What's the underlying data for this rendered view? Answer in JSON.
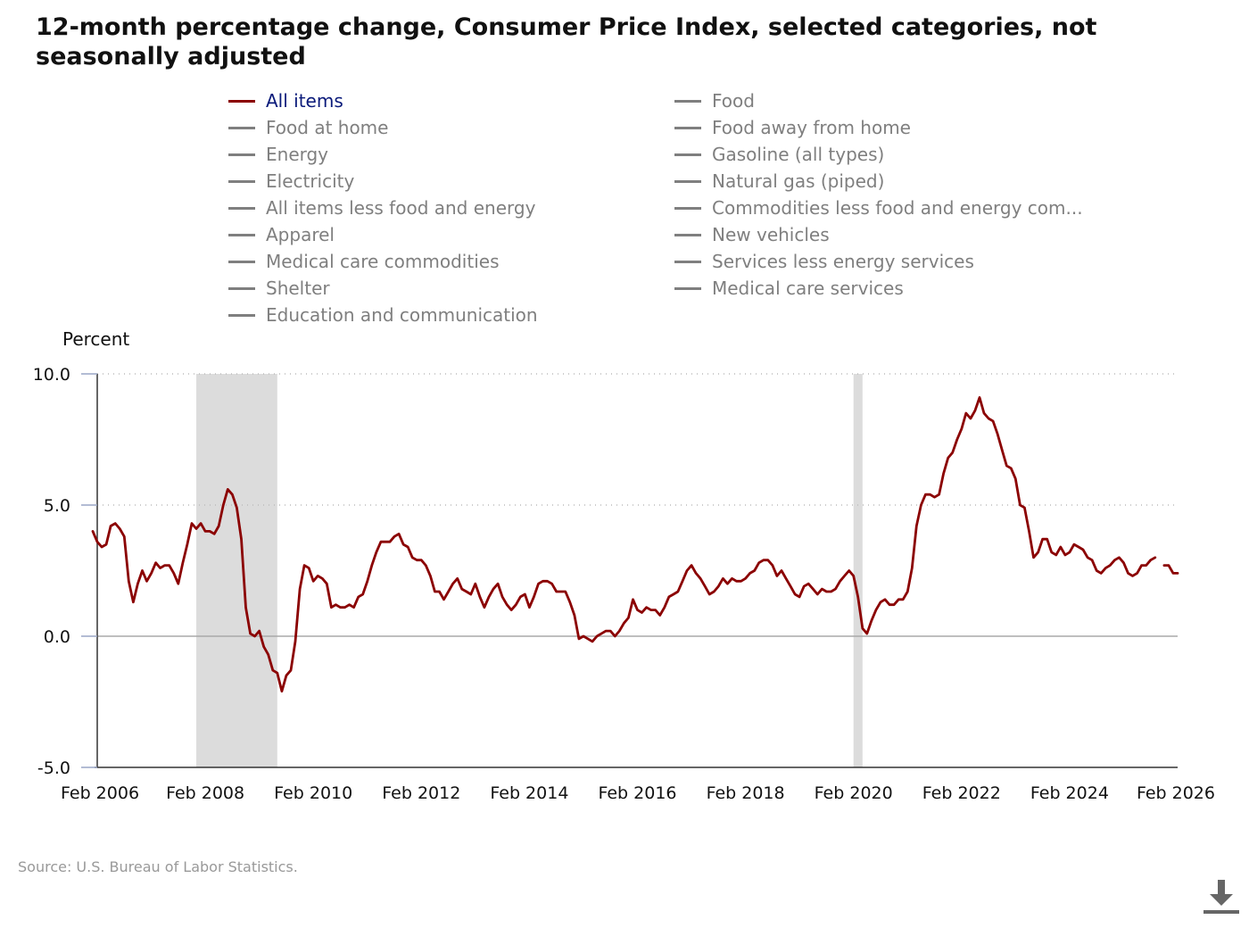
{
  "title": "12-month percentage change, Consumer Price Index, selected categories, not seasonally adjusted",
  "legend": {
    "items": [
      {
        "label": "All items",
        "active": true
      },
      {
        "label": "Food",
        "active": false
      },
      {
        "label": "Food at home",
        "active": false
      },
      {
        "label": "Food away from home",
        "active": false
      },
      {
        "label": "Energy",
        "active": false
      },
      {
        "label": "Gasoline (all types)",
        "active": false
      },
      {
        "label": "Electricity",
        "active": false
      },
      {
        "label": "Natural gas (piped)",
        "active": false
      },
      {
        "label": "All items less food and energy",
        "active": false
      },
      {
        "label": "Commodities less food and energy com...",
        "active": false
      },
      {
        "label": "Apparel",
        "active": false
      },
      {
        "label": "New vehicles",
        "active": false
      },
      {
        "label": "Medical care commodities",
        "active": false
      },
      {
        "label": "Services less energy services",
        "active": false
      },
      {
        "label": "Shelter",
        "active": false
      },
      {
        "label": "Medical care services",
        "active": false
      },
      {
        "label": "Education and communication",
        "active": false
      }
    ]
  },
  "source": "Source: U.S. Bureau of Labor Statistics.",
  "icons": {
    "download": "download-icon"
  },
  "colors": {
    "series": "#8b0000",
    "inactive": "#7f7f7f",
    "active_label": "#0a1a7a",
    "recession": "#dcdcdc",
    "grid": "#bbbbbb"
  },
  "chart_data": {
    "type": "line",
    "title": "12-month percentage change, Consumer Price Index, selected categories, not seasonally adjusted",
    "ylabel": "Percent",
    "xlabel": "",
    "ylim": [
      -5,
      10
    ],
    "y_ticks": [
      "10.0",
      "5.0",
      "0.0",
      "-5.0"
    ],
    "y_tick_values": [
      10,
      5,
      0,
      -5
    ],
    "x_ticks": [
      "Feb 2006",
      "Feb 2008",
      "Feb 2010",
      "Feb 2012",
      "Feb 2014",
      "Feb 2016",
      "Feb 2018",
      "Feb 2020",
      "Feb 2022",
      "Feb 2024",
      "Feb 2026"
    ],
    "x_range": [
      "2006-02",
      "2026-02"
    ],
    "grid": "horizontal dotted",
    "legend_placement": "top",
    "recessions": [
      {
        "start": "2007-12",
        "end": "2009-06"
      },
      {
        "start": "2020-02",
        "end": "2020-04"
      }
    ],
    "series": [
      {
        "name": "All items",
        "start": "2006-01",
        "values": [
          4.0,
          3.6,
          3.4,
          3.5,
          4.2,
          4.3,
          4.1,
          3.8,
          2.1,
          1.3,
          2.0,
          2.5,
          2.1,
          2.4,
          2.8,
          2.6,
          2.7,
          2.7,
          2.4,
          2.0,
          2.8,
          3.5,
          4.3,
          4.1,
          4.3,
          4.0,
          4.0,
          3.9,
          4.2,
          5.0,
          5.6,
          5.4,
          4.9,
          3.7,
          1.1,
          0.1,
          0.0,
          0.2,
          -0.4,
          -0.7,
          -1.3,
          -1.4,
          -2.1,
          -1.5,
          -1.3,
          -0.2,
          1.8,
          2.7,
          2.6,
          2.1,
          2.3,
          2.2,
          2.0,
          1.1,
          1.2,
          1.1,
          1.1,
          1.2,
          1.1,
          1.5,
          1.6,
          2.1,
          2.7,
          3.2,
          3.6,
          3.6,
          3.6,
          3.8,
          3.9,
          3.5,
          3.4,
          3.0,
          2.9,
          2.9,
          2.7,
          2.3,
          1.7,
          1.7,
          1.4,
          1.7,
          2.0,
          2.2,
          1.8,
          1.7,
          1.6,
          2.0,
          1.5,
          1.1,
          1.5,
          1.8,
          2.0,
          1.5,
          1.2,
          1.0,
          1.2,
          1.5,
          1.6,
          1.1,
          1.5,
          2.0,
          2.1,
          2.1,
          2.0,
          1.7,
          1.7,
          1.7,
          1.3,
          0.8,
          -0.1,
          0.0,
          -0.1,
          -0.2,
          0.0,
          0.1,
          0.2,
          0.2,
          0.0,
          0.2,
          0.5,
          0.7,
          1.4,
          1.0,
          0.9,
          1.1,
          1.0,
          1.0,
          0.8,
          1.1,
          1.5,
          1.6,
          1.7,
          2.1,
          2.5,
          2.7,
          2.4,
          2.2,
          1.9,
          1.6,
          1.7,
          1.9,
          2.2,
          2.0,
          2.2,
          2.1,
          2.1,
          2.2,
          2.4,
          2.5,
          2.8,
          2.9,
          2.9,
          2.7,
          2.3,
          2.5,
          2.2,
          1.9,
          1.6,
          1.5,
          1.9,
          2.0,
          1.8,
          1.6,
          1.8,
          1.7,
          1.7,
          1.8,
          2.1,
          2.3,
          2.5,
          2.3,
          1.5,
          0.3,
          0.1,
          0.6,
          1.0,
          1.3,
          1.4,
          1.2,
          1.2,
          1.4,
          1.4,
          1.7,
          2.6,
          4.2,
          5.0,
          5.4,
          5.4,
          5.3,
          5.4,
          6.2,
          6.8,
          7.0,
          7.5,
          7.9,
          8.5,
          8.3,
          8.6,
          9.1,
          8.5,
          8.3,
          8.2,
          7.7,
          7.1,
          6.5,
          6.4,
          6.0,
          5.0,
          4.9,
          4.0,
          3.0,
          3.2,
          3.7,
          3.7,
          3.2,
          3.1,
          3.4,
          3.1,
          3.2,
          3.5,
          3.4,
          3.3,
          3.0,
          2.9,
          2.5,
          2.4,
          2.6,
          2.7,
          2.9,
          3.0,
          2.8,
          2.4,
          2.3,
          2.4,
          2.7,
          2.7,
          2.9,
          3.0,
          null,
          2.7,
          2.7,
          2.4,
          2.4
        ]
      }
    ]
  }
}
